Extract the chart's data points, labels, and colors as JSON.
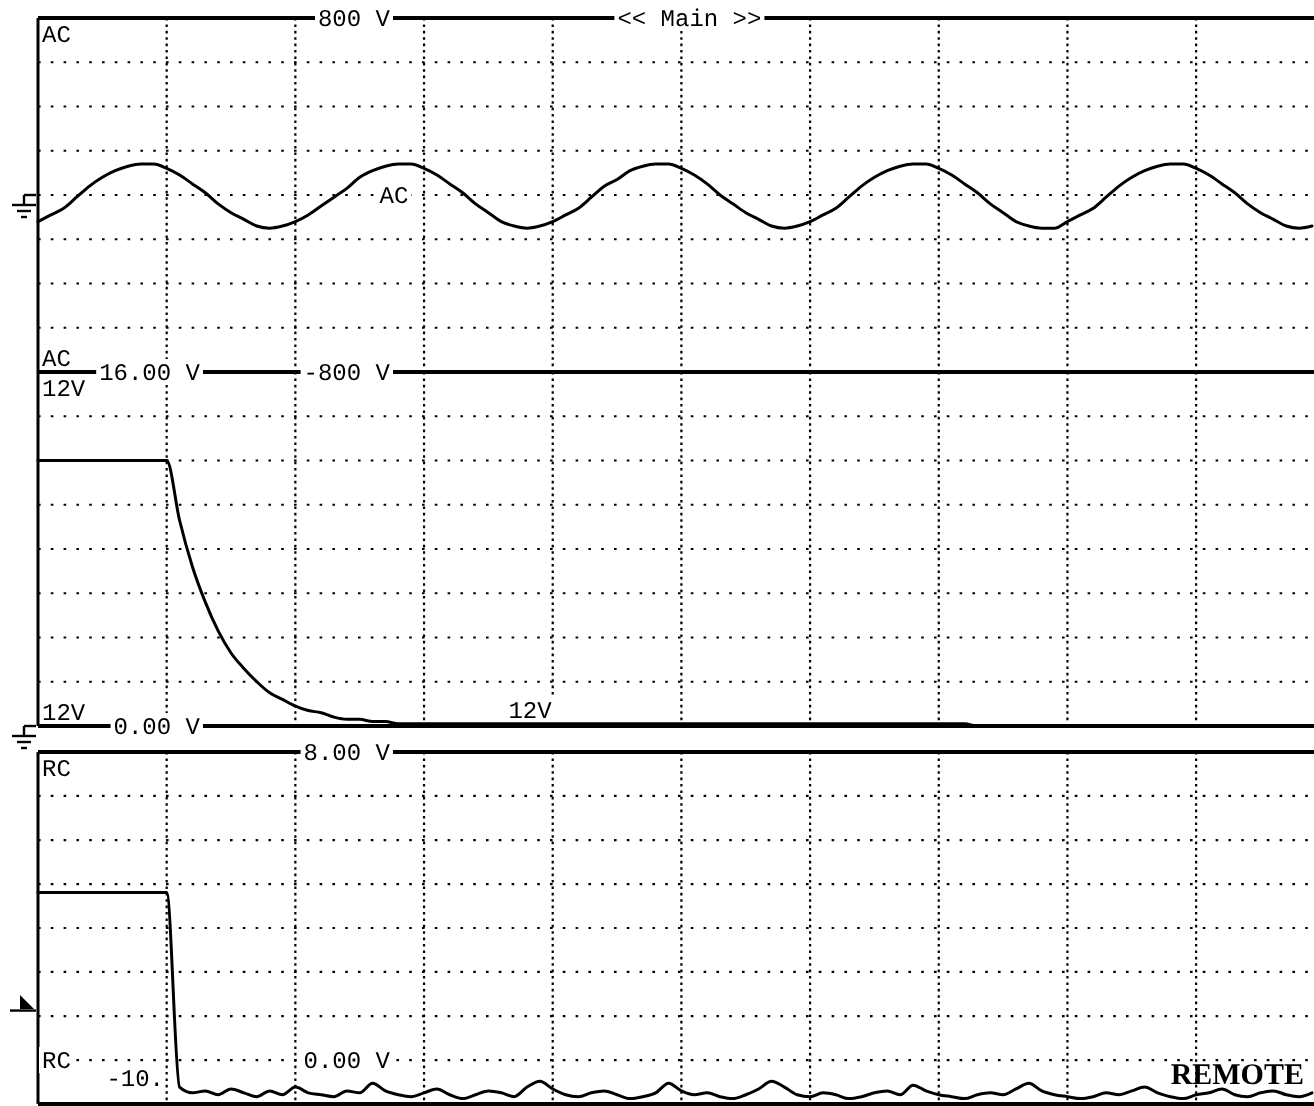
{
  "chart_data": [
    {
      "type": "line",
      "title": "<< Main >>",
      "categories": [
        null,
        null,
        null,
        null,
        null,
        null,
        null,
        null,
        null,
        null,
        null,
        null,
        null,
        null,
        null,
        null,
        null,
        null,
        null,
        null,
        null,
        null,
        null,
        null,
        null,
        null,
        null,
        null,
        null,
        null,
        null,
        null,
        null,
        null,
        null,
        null,
        null,
        null,
        null,
        null,
        null,
        null,
        null,
        null,
        null,
        null,
        null,
        null,
        null,
        null,
        null,
        null,
        null,
        null,
        null,
        null,
        null,
        null,
        null,
        null,
        null,
        null,
        null,
        null,
        null,
        null,
        null,
        null,
        null,
        null,
        null,
        null,
        null,
        null,
        null,
        null,
        null,
        null,
        null,
        null,
        null,
        null,
        null,
        null,
        null,
        null,
        null,
        null,
        null,
        null,
        null,
        null,
        null,
        null,
        null,
        null,
        null,
        null,
        null,
        null
      ],
      "series": [
        {
          "name": "AC",
          "color": "#000000",
          "values": [
            -120,
            -90,
            -60,
            -10,
            40,
            80,
            110,
            130,
            140,
            140,
            120,
            90,
            50,
            10,
            -40,
            -80,
            -110,
            -140,
            -150,
            -140,
            -120,
            -90,
            -50,
            -10,
            30,
            80,
            110,
            130,
            140,
            140,
            120,
            90,
            50,
            10,
            -40,
            -80,
            -120,
            -140,
            -150,
            -140,
            -120,
            -90,
            -60,
            -10,
            40,
            70,
            110,
            130,
            140,
            140,
            120,
            90,
            50,
            0,
            -40,
            -80,
            -110,
            -140,
            -150,
            -140,
            -120,
            -90,
            -60,
            -10,
            40,
            80,
            110,
            130,
            140,
            140,
            120,
            90,
            50,
            10,
            -40,
            -80,
            -120,
            -140,
            -150,
            -150,
            -120,
            -90,
            -60,
            -10,
            40,
            80,
            110,
            130,
            140,
            140,
            120,
            90,
            50,
            10,
            -40,
            -80,
            -110,
            -140,
            -150,
            -140
          ]
        }
      ],
      "ylim": [
        -800,
        800
      ],
      "yticks": [
        {
          "value": 800,
          "label": "800 V"
        },
        {
          "value": 600,
          "label": null
        },
        {
          "value": 400,
          "label": null
        },
        {
          "value": 200,
          "label": null
        },
        {
          "value": 0,
          "label": null
        },
        {
          "value": -200,
          "label": null
        },
        {
          "value": -400,
          "label": null
        },
        {
          "value": -600,
          "label": null
        },
        {
          "value": -800,
          "label": "-800 V"
        }
      ],
      "grid": true,
      "annotations": [
        "AC"
      ]
    },
    {
      "type": "line",
      "categories": [
        null,
        null,
        null,
        null,
        null,
        null,
        null,
        null,
        null,
        null,
        null,
        null,
        null,
        null,
        null,
        null,
        null,
        null,
        null,
        null,
        null,
        null,
        null,
        null,
        null,
        null,
        null,
        null,
        null,
        null,
        null,
        null,
        null,
        null,
        null,
        null,
        null,
        null,
        null,
        null,
        null,
        null,
        null,
        null,
        null,
        null,
        null,
        null,
        null,
        null,
        null,
        null,
        null,
        null,
        null,
        null,
        null,
        null,
        null,
        null,
        null,
        null,
        null,
        null,
        null,
        null,
        null,
        null,
        null,
        null,
        null,
        null,
        null,
        null,
        null,
        null,
        null,
        null,
        null,
        null,
        null,
        null,
        null,
        null,
        null,
        null,
        null,
        null,
        null,
        null,
        null,
        null,
        null,
        null,
        null,
        null,
        null,
        null,
        null,
        null
      ],
      "series": [
        {
          "name": "12V",
          "color": "#000000",
          "values": [
            12,
            12,
            12,
            12,
            12,
            12,
            12,
            12,
            12,
            12,
            12,
            9.3,
            7.2,
            5.6,
            4.3,
            3.3,
            2.6,
            2.0,
            1.5,
            1.2,
            0.9,
            0.7,
            0.6,
            0.4,
            0.3,
            0.3,
            0.2,
            0.2,
            0.1,
            0.1,
            0.1,
            0.1,
            0.1,
            0.1,
            0.1,
            0.1,
            0.1,
            0.1,
            0.1,
            0.1,
            0.1,
            0.1,
            0.1,
            0.1,
            0.1,
            0.1,
            0.1,
            0.1,
            0.1,
            0.1,
            0.1,
            0.1,
            0.1,
            0.1,
            0.1,
            0.1,
            0.1,
            0.1,
            0.1,
            0.1,
            0.1,
            0.1,
            0.1,
            0.1,
            0.1,
            0.1,
            0.1,
            0.1,
            0.1,
            0.1,
            0.1,
            0.1,
            0.1,
            0,
            0,
            0,
            0,
            0,
            0,
            0,
            0,
            0,
            0,
            0,
            0,
            0,
            0,
            0,
            0,
            0,
            0,
            0,
            0,
            0,
            0,
            0,
            0,
            0,
            0,
            0
          ]
        }
      ],
      "ylim": [
        0,
        16
      ],
      "yticks": [
        {
          "value": 16,
          "label": "16.00 V"
        },
        {
          "value": 14,
          "label": null
        },
        {
          "value": 12,
          "label": null
        },
        {
          "value": 10,
          "label": null
        },
        {
          "value": 8,
          "label": null
        },
        {
          "value": 6,
          "label": null
        },
        {
          "value": 4,
          "label": null
        },
        {
          "value": 2,
          "label": null
        },
        {
          "value": 0,
          "label": "0.00 V"
        }
      ],
      "grid": true,
      "annotations": [
        "12V"
      ]
    },
    {
      "type": "line",
      "categories": [
        null,
        null,
        null,
        null,
        null,
        null,
        null,
        null,
        null,
        null,
        null,
        null,
        null,
        null,
        null,
        null,
        null,
        null,
        null,
        null,
        null,
        null,
        null,
        null,
        null,
        null,
        null,
        null,
        null,
        null,
        null,
        null,
        null,
        null,
        null,
        null,
        null,
        null,
        null,
        null,
        null,
        null,
        null,
        null,
        null,
        null,
        null,
        null,
        null,
        null,
        null,
        null,
        null,
        null,
        null,
        null,
        null,
        null,
        null,
        null,
        null,
        null,
        null,
        null,
        null,
        null,
        null,
        null,
        null,
        null,
        null,
        null,
        null,
        null,
        null,
        null,
        null,
        null,
        null,
        null,
        null,
        null,
        null,
        null,
        null,
        null,
        null,
        null,
        null,
        null,
        null,
        null,
        null,
        null,
        null,
        null,
        null,
        null,
        null,
        null
      ],
      "series": [
        {
          "name": "RC",
          "color": "#000000",
          "values": [
            4.35,
            4.35,
            4.35,
            4.35,
            4.35,
            4.35,
            4.35,
            4.35,
            4.35,
            4.35,
            4.35,
            -0.7,
            -0.85,
            -0.8,
            -0.9,
            -0.75,
            -0.85,
            -0.95,
            -0.8,
            -0.9,
            -0.7,
            -0.85,
            -0.9,
            -0.95,
            -0.8,
            -0.85,
            -0.6,
            -0.8,
            -0.9,
            -0.95,
            -0.85,
            -0.75,
            -0.9,
            -1.0,
            -0.9,
            -0.8,
            -0.85,
            -0.95,
            -0.7,
            -0.55,
            -0.75,
            -0.9,
            -0.95,
            -0.85,
            -0.8,
            -0.9,
            -1.0,
            -0.95,
            -0.85,
            -0.6,
            -0.8,
            -0.9,
            -0.85,
            -0.95,
            -1.0,
            -0.9,
            -0.75,
            -0.55,
            -0.7,
            -0.9,
            -0.95,
            -0.85,
            -0.9,
            -1.0,
            -0.95,
            -0.85,
            -0.8,
            -0.9,
            -0.65,
            -0.8,
            -0.9,
            -0.95,
            -1.0,
            -0.9,
            -0.85,
            -0.9,
            -0.75,
            -0.6,
            -0.8,
            -0.9,
            -0.95,
            -1.0,
            -0.95,
            -0.85,
            -0.9,
            -0.8,
            -0.7,
            -0.85,
            -0.95,
            -1.0,
            -0.9,
            -0.85,
            -0.75,
            -0.9,
            -0.95,
            -0.85,
            -0.8,
            -0.9,
            -0.95,
            -0.85
          ]
        }
      ],
      "ylim": [
        -1.14,
        8
      ],
      "yticks": [
        {
          "value": 8,
          "label": "8.00 V"
        },
        {
          "value": 6.86,
          "label": null
        },
        {
          "value": 5.71,
          "label": null
        },
        {
          "value": 4.57,
          "label": null
        },
        {
          "value": 3.43,
          "label": null
        },
        {
          "value": 2.29,
          "label": null
        },
        {
          "value": 1.14,
          "label": null
        },
        {
          "value": 0,
          "label": "0.00 V"
        }
      ],
      "grid": true,
      "annotations": [
        "-10.",
        "REMOTE"
      ]
    }
  ]
}
